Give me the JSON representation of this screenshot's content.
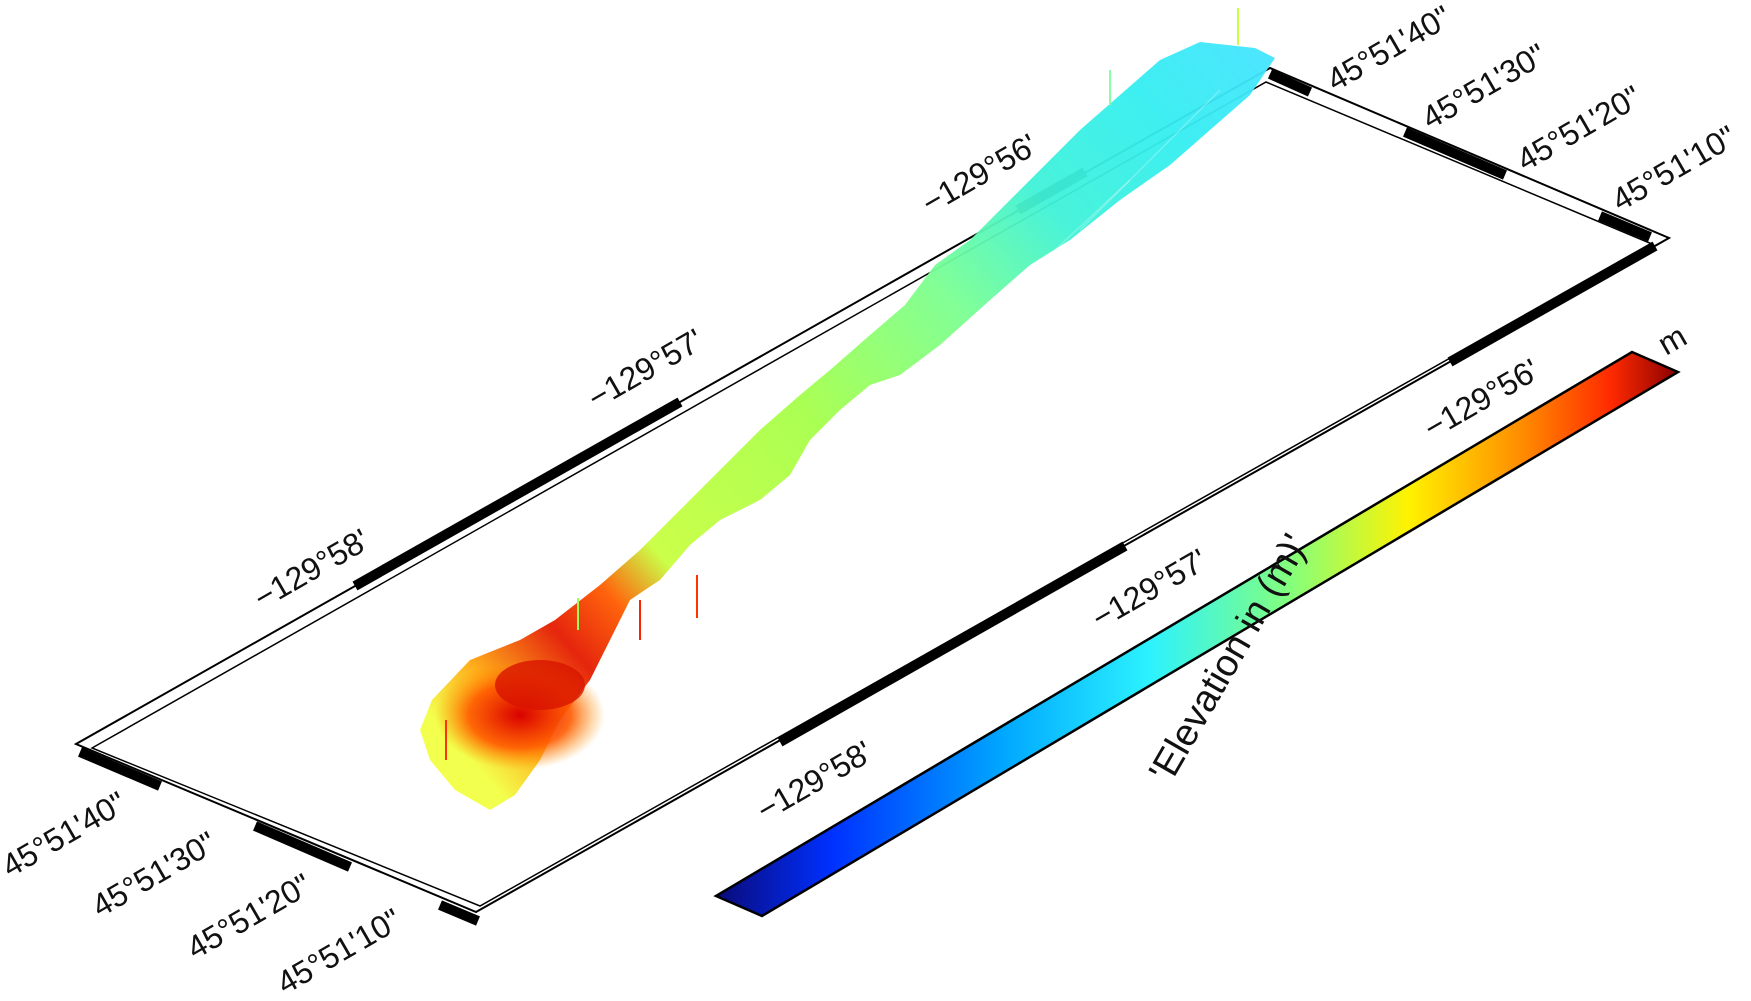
{
  "map": {
    "projection": "perspective 3-D view",
    "frame": "fancy checkered border",
    "region": {
      "lon_min": "-129°58.5'",
      "lon_max": "-129°55.5'",
      "lat_min": "45°51'05\"",
      "lat_max": "45°51'45\""
    },
    "lon_labels_top": [
      "−129°58'",
      "−129°57'",
      "−129°56'"
    ],
    "lon_labels_bottom": [
      "−129°58'",
      "−129°57'",
      "−129°56'"
    ],
    "lat_labels_left": [
      "45°51'40\"",
      "45°51'30\"",
      "45°51'20\"",
      "45°51'10\""
    ],
    "lat_labels_right": [
      "45°51'40\"",
      "45°51'30\"",
      "45°51'20\"",
      "45°51'10\""
    ],
    "surface": {
      "description_colors": [
        "#d40000",
        "#ff6a00",
        "#ffd400",
        "#9cff55",
        "#37f0ff",
        "#00b8ff"
      ]
    }
  },
  "colorbar": {
    "title": "'Elevation in (m)'",
    "unit": "m",
    "colormap": [
      "#0a0a78",
      "#0030ff",
      "#00a8ff",
      "#2cf2ff",
      "#86ff7a",
      "#fff200",
      "#ff8a00",
      "#ff2a00",
      "#8a0000"
    ]
  }
}
